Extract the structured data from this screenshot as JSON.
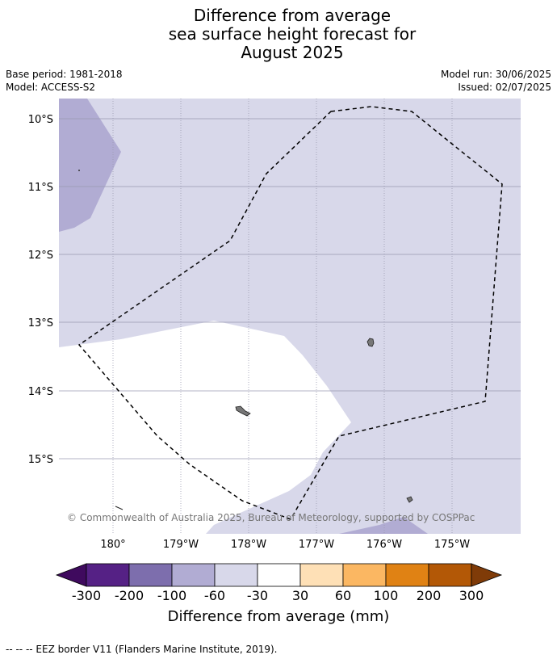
{
  "title": {
    "line1": "Difference from average",
    "line2": "sea surface height forecast for",
    "line3": "August 2025"
  },
  "meta": {
    "base_period": "Base period: 1981-2018",
    "model": "Model: ACCESS-S2",
    "model_run": "Model run: 30/06/2025",
    "issued": "Issued: 02/07/2025"
  },
  "map": {
    "lat_labels": [
      "10°S",
      "11°S",
      "12°S",
      "13°S",
      "14°S",
      "15°S"
    ],
    "lon_labels": [
      "180°",
      "179°W",
      "178°W",
      "177°W",
      "176°W",
      "175°W"
    ],
    "copyright": "© Commonwealth of Australia 2025, Bureau of Meteorology, supported by COSPPac",
    "colors": {
      "background_band": "#d8d8ea",
      "darker_band": "#b1acd3",
      "neutral_band": "#ffffff",
      "gridline": "#9a9ab0"
    }
  },
  "colorbar": {
    "label": "Difference from average (mm)",
    "ticks": [
      "-300",
      "-200",
      "-100",
      "-60",
      "-30",
      "30",
      "60",
      "100",
      "200",
      "300"
    ],
    "colors": [
      "#3f0a5e",
      "#552185",
      "#7d6ead",
      "#b1acd3",
      "#d8d8ea",
      "#ffffff",
      "#fee0b6",
      "#fbb762",
      "#e08214",
      "#b35806",
      "#7f3b08"
    ]
  },
  "footnote": "--  --  -- EEZ border V11 (Flanders Marine Institute, 2019)."
}
